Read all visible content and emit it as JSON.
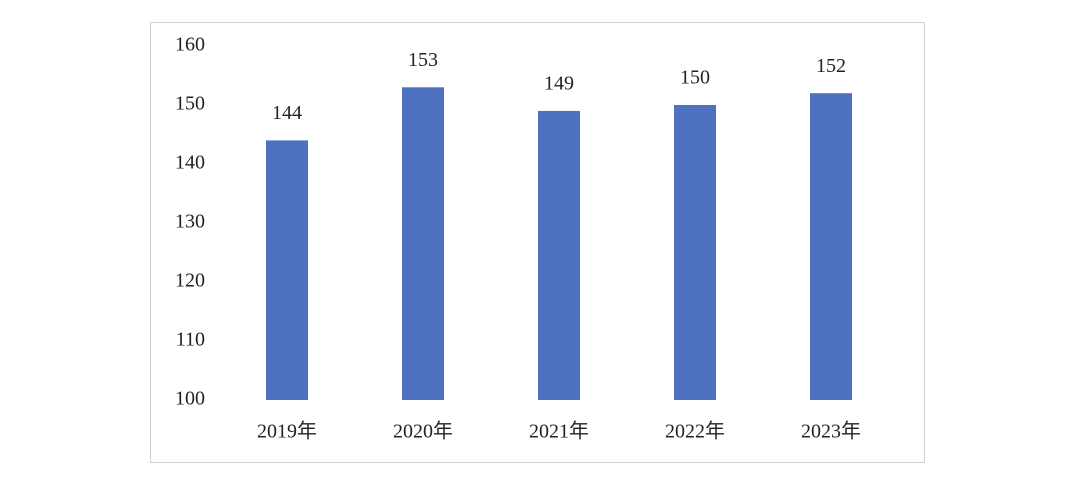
{
  "chart_data": {
    "type": "bar",
    "categories": [
      "2019年",
      "2020年",
      "2021年",
      "2022年",
      "2023年"
    ],
    "values": [
      144,
      153,
      149,
      150,
      152
    ],
    "color": "#4f72c0",
    "ylim": [
      100,
      160
    ],
    "yticks": [
      100,
      110,
      120,
      130,
      140,
      150,
      160
    ],
    "grid": false
  }
}
